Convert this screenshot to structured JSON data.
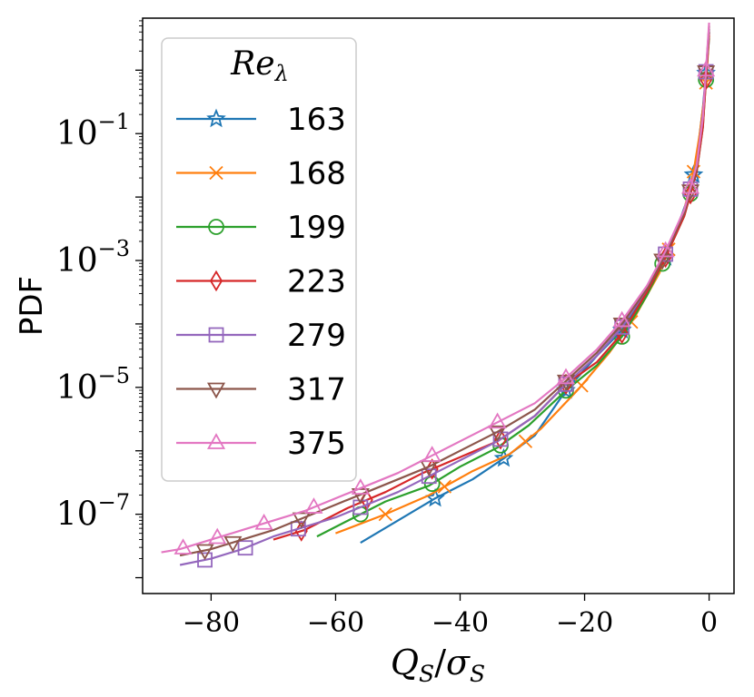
{
  "chart_data": {
    "type": "line",
    "title": "",
    "xlabel": {
      "main": "Q",
      "main_sub": "S",
      "sep": "/",
      "den": "σ",
      "den_sub": "S"
    },
    "ylabel": "PDF",
    "xlim": [
      -91,
      4
    ],
    "ylim_log10": [
      -8.25,
      0.82
    ],
    "yscale": "log",
    "grid": false,
    "x_ticks": [
      {
        "value": -80,
        "label": "−80"
      },
      {
        "value": -60,
        "label": "−60"
      },
      {
        "value": -40,
        "label": "−40"
      },
      {
        "value": -20,
        "label": "−20"
      },
      {
        "value": 0,
        "label": "0"
      }
    ],
    "y_ticks": [
      {
        "value": -1,
        "base": "10",
        "exp": "−1"
      },
      {
        "value": -3,
        "base": "10",
        "exp": "−3"
      },
      {
        "value": -5,
        "base": "10",
        "exp": "−5"
      },
      {
        "value": -7,
        "base": "10",
        "exp": "−7"
      }
    ],
    "legend": {
      "title_main": "Re",
      "title_sub": "λ",
      "location": "upper-left"
    },
    "series": [
      {
        "name": "163",
        "color": "#1f77b4",
        "marker": "star",
        "x": [
          -56,
          -50,
          -44,
          -38,
          -33,
          -28,
          -23,
          -18,
          -14,
          -10,
          -7,
          -5,
          -3,
          -2,
          -1,
          0
        ],
        "log10_y": [
          -7.45,
          -7.1,
          -6.75,
          -6.45,
          -6.12,
          -5.76,
          -5.05,
          -4.5,
          -4.1,
          -3.45,
          -2.95,
          -2.45,
          -1.9,
          -1.4,
          -0.6,
          0.5
        ],
        "markers_x": [
          -44,
          -33,
          -23,
          -14,
          -7,
          -2.5,
          -0.5
        ]
      },
      {
        "name": "168",
        "color": "#ff7f0e",
        "marker": "x",
        "x": [
          -60,
          -52,
          -45,
          -38,
          -32,
          -27,
          -21,
          -16,
          -12,
          -8,
          -6,
          -4,
          -2.5,
          -1.5,
          -0.5,
          0
        ],
        "log10_y": [
          -7.3,
          -7.0,
          -6.7,
          -6.32,
          -6.05,
          -5.65,
          -5.03,
          -4.45,
          -3.9,
          -3.2,
          -2.7,
          -2.2,
          -1.6,
          -1.0,
          -0.2,
          0.55
        ],
        "markers_x": [
          -52,
          -42.5,
          -29.5,
          -20.5,
          -12.5,
          -6.5,
          -2.5,
          -0.5
        ]
      },
      {
        "name": "199",
        "color": "#2ca02c",
        "marker": "circle",
        "x": [
          -63,
          -58,
          -52,
          -45,
          -40,
          -34,
          -29,
          -23,
          -18,
          -14,
          -10,
          -7,
          -4,
          -2,
          -1,
          0
        ],
        "log10_y": [
          -7.35,
          -7.1,
          -6.8,
          -6.55,
          -6.25,
          -5.95,
          -5.6,
          -5.05,
          -4.65,
          -4.2,
          -3.55,
          -2.95,
          -2.3,
          -1.6,
          -0.9,
          0.6
        ],
        "markers_x": [
          -56,
          -44.5,
          -33.5,
          -23,
          -14,
          -7.5,
          -3,
          -0.5
        ]
      },
      {
        "name": "223",
        "color": "#d62728",
        "marker": "diamond",
        "x": [
          -70,
          -65,
          -58,
          -52,
          -46,
          -40,
          -34,
          -28,
          -23,
          -18,
          -14,
          -10,
          -7,
          -4,
          -2,
          -1,
          0
        ],
        "log10_y": [
          -7.4,
          -7.25,
          -6.9,
          -6.65,
          -6.35,
          -6.1,
          -5.85,
          -5.45,
          -4.95,
          -4.6,
          -4.15,
          -3.5,
          -2.95,
          -2.3,
          -1.6,
          -0.9,
          0.6
        ],
        "markers_x": [
          -65.5,
          -55,
          -44.5,
          -33.5,
          -23,
          -14,
          -7,
          -3,
          -0.5
        ]
      },
      {
        "name": "279",
        "color": "#9467bd",
        "marker": "square",
        "x": [
          -85,
          -80,
          -75,
          -70,
          -65,
          -60,
          -55,
          -50,
          -45,
          -40,
          -34,
          -28,
          -23,
          -18,
          -14,
          -10,
          -7,
          -4,
          -2,
          -1,
          0
        ],
        "log10_y": [
          -7.8,
          -7.7,
          -7.55,
          -7.35,
          -7.2,
          -7.05,
          -6.85,
          -6.65,
          -6.4,
          -6.15,
          -5.85,
          -5.45,
          -4.95,
          -4.5,
          -4.05,
          -3.45,
          -2.9,
          -2.25,
          -1.5,
          -0.7,
          0.65
        ],
        "markers_x": [
          -81,
          -74.5,
          -66,
          -56,
          -45,
          -33.5,
          -23,
          -14,
          -7,
          -3,
          -0.5
        ]
      },
      {
        "name": "317",
        "color": "#8c564b",
        "marker": "tri-down",
        "x": [
          -85,
          -80,
          -75,
          -70,
          -65,
          -60,
          -55,
          -50,
          -45,
          -40,
          -34,
          -28,
          -23,
          -18,
          -14,
          -10,
          -7,
          -4,
          -2,
          -1,
          0
        ],
        "log10_y": [
          -7.65,
          -7.55,
          -7.4,
          -7.25,
          -7.05,
          -6.85,
          -6.65,
          -6.45,
          -6.25,
          -6.0,
          -5.7,
          -5.35,
          -4.9,
          -4.45,
          -4.0,
          -3.45,
          -2.9,
          -2.25,
          -1.55,
          -0.75,
          0.7
        ],
        "markers_x": [
          -81,
          -76.5,
          -65.5,
          -56,
          -45,
          -34,
          -23,
          -14,
          -7.5,
          -3,
          -0.5
        ]
      },
      {
        "name": "375",
        "color": "#e377c2",
        "marker": "tri-up",
        "x": [
          -88,
          -85,
          -80,
          -75,
          -70,
          -65,
          -60,
          -55,
          -50,
          -45,
          -40,
          -34,
          -28,
          -23,
          -18,
          -14,
          -10,
          -7,
          -4,
          -2,
          -1,
          0
        ],
        "log10_y": [
          -7.6,
          -7.55,
          -7.4,
          -7.25,
          -7.1,
          -6.95,
          -6.75,
          -6.55,
          -6.35,
          -6.1,
          -5.85,
          -5.55,
          -5.25,
          -4.85,
          -4.4,
          -3.95,
          -3.4,
          -2.85,
          -2.2,
          -1.5,
          -0.75,
          0.75
        ],
        "markers_x": [
          -84.5,
          -79,
          -71.5,
          -63.5,
          -56,
          -44.5,
          -34,
          -23,
          -14,
          -7,
          -3,
          -0.5
        ]
      }
    ]
  }
}
